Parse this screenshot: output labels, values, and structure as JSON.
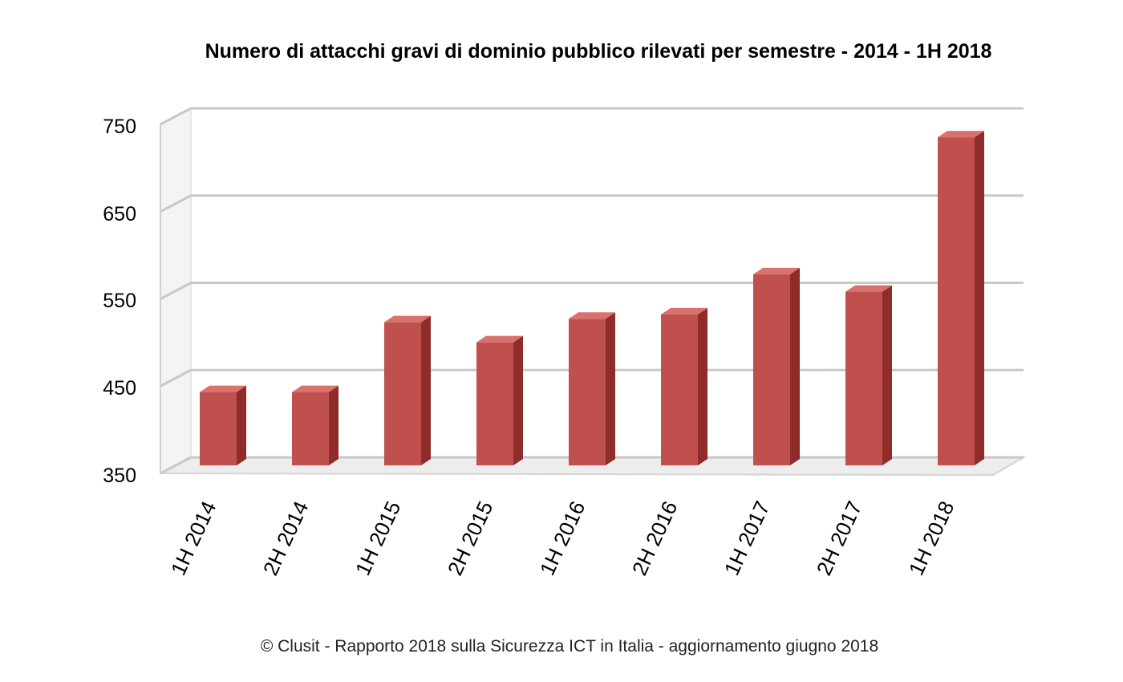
{
  "chart_data": {
    "type": "bar",
    "title": "Numero di attacchi gravi di dominio pubblico rilevati per semestre - 2014 - 1H 2018",
    "categories": [
      "1H 2014",
      "2H 2014",
      "1H 2015",
      "2H 2015",
      "1H 2016",
      "2H 2016",
      "1H 2017",
      "2H 2017",
      "1H 2018"
    ],
    "series": [
      {
        "name": "Attacchi gravi",
        "values": [
          434,
          434,
          514,
          491,
          518,
          523,
          569,
          549,
          726
        ]
      }
    ],
    "ylim": [
      350,
      750
    ],
    "yticks": [
      "750",
      "650",
      "550",
      "450",
      "350"
    ],
    "xlabel": "",
    "ylabel": "",
    "grid": true,
    "colors": {
      "bar_front": "#c0504d",
      "bar_side": "#8e2c29",
      "bar_top": "#d9716d",
      "gridline": "#c8c8c8",
      "wall": "#e6e6e6"
    }
  },
  "footer": {
    "caption": "© Clusit - Rapporto 2018 sulla Sicurezza ICT in Italia - aggiornamento giugno 2018"
  }
}
